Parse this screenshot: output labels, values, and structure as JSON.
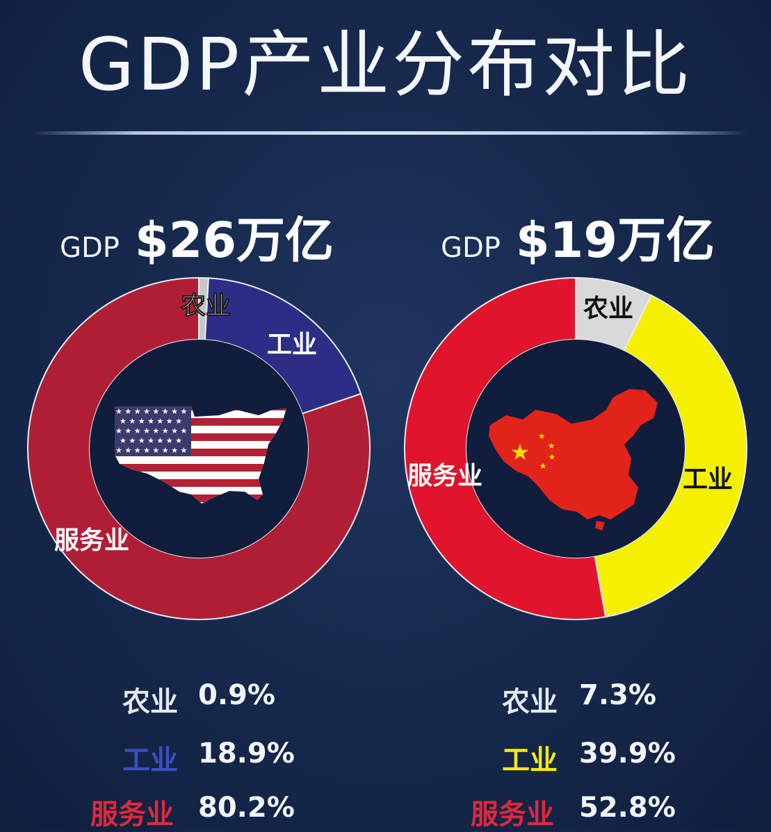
{
  "title": "GDP产业分布对比",
  "gdp_label": "GDP",
  "usa": {
    "gdp_value": "$26万亿"
  },
  "china": {
    "gdp_value": "$19万亿"
  },
  "colors": {
    "usa_agriculture": "#c8c8c8",
    "usa_industry": "#2b2d86",
    "usa_services": "#b01e36",
    "china_agriculture": "#d9d9d9",
    "china_industry": "#f5f000",
    "china_services": "#e0142a",
    "legend_usa_industry": "#3b4fc0",
    "legend_china_industry": "#f2ea10",
    "legend_services": "#e0283c"
  },
  "chart_data": [
    {
      "type": "pie",
      "style": "donut",
      "categories": [
        "农业",
        "工业",
        "服务业"
      ],
      "values": [
        0.9,
        18.9,
        80.2
      ],
      "labels": [
        "0.9%",
        "18.9%",
        "80.2%"
      ],
      "colors": [
        "#c8c8c8",
        "#2b2d86",
        "#b01e36"
      ],
      "center_icon": "usa-flag-map-icon"
    },
    {
      "type": "pie",
      "style": "donut",
      "categories": [
        "农业",
        "工业",
        "服务业"
      ],
      "values": [
        7.3,
        39.9,
        52.8
      ],
      "labels": [
        "7.3%",
        "39.9%",
        "52.8%"
      ],
      "colors": [
        "#d9d9d9",
        "#f5f000",
        "#e0142a"
      ],
      "center_icon": "china-flag-map-icon"
    }
  ]
}
